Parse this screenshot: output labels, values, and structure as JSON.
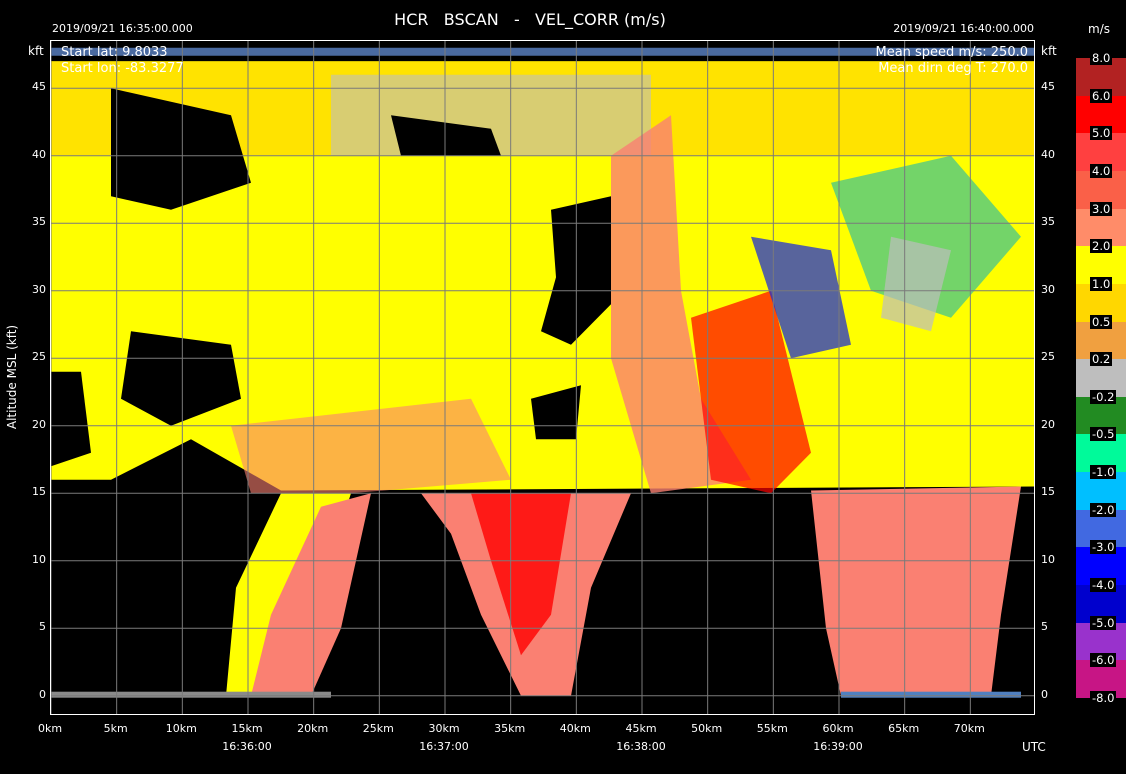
{
  "title": "HCR   BSCAN   -   VEL_CORR (m/s)",
  "start_time": "2019/09/21 16:35:00.000",
  "end_time": "2019/09/21 16:40:00.000",
  "info": {
    "start_lat": "Start lat: 9.8033",
    "start_lon": "Start lon: -83.3277",
    "mean_speed": "Mean speed m/s: 250.0",
    "mean_dirn": "Mean dirn deg T: 270.0"
  },
  "units_label": "m/s",
  "colors": {
    "background": "#000000",
    "yellow": "#ffff00",
    "gold": "#ffd700",
    "salmon": "#fa8072",
    "red": "#ff0000",
    "gray": "#bebebe",
    "green": "#228b22"
  },
  "chart_data": {
    "type": "heatmap",
    "field": "VEL_CORR",
    "units": "m/s",
    "ylabel": "Altitude MSL (kft)",
    "y_unit_label": "kft",
    "ylim": [
      -1.5,
      48.5
    ],
    "y_ticks": [
      0,
      5,
      10,
      15,
      20,
      25,
      30,
      35,
      40,
      45
    ],
    "y_tick_labels": [
      "0",
      "5",
      "10",
      "15",
      "20",
      "25",
      "30",
      "35",
      "40",
      "45"
    ],
    "xlim_km": [
      0,
      75
    ],
    "x_ticks_km": [
      0,
      5,
      10,
      15,
      20,
      25,
      30,
      35,
      40,
      45,
      50,
      55,
      60,
      65,
      70
    ],
    "x_tick_labels": [
      "0km",
      "5km",
      "10km",
      "15km",
      "20km",
      "25km",
      "30km",
      "35km",
      "40km",
      "45km",
      "50km",
      "55km",
      "60km",
      "65km",
      "70km"
    ],
    "time_ticks_km": [
      15,
      30,
      45,
      60
    ],
    "time_tick_labels": [
      "16:36:00",
      "16:37:00",
      "16:38:00",
      "16:39:00"
    ],
    "time_axis_label": "UTC",
    "grid": true,
    "colorbar": {
      "labels": [
        "8.0",
        "6.0",
        "5.0",
        "4.0",
        "3.0",
        "2.0",
        "1.0",
        "0.5",
        "0.2",
        "-0.2",
        "-0.5",
        "-1.0",
        "-2.0",
        "-3.0",
        "-4.0",
        "-5.0",
        "-6.0",
        "-8.0"
      ],
      "colors": [
        "#b22222",
        "#ff0000",
        "#ff4040",
        "#fa6048",
        "#ff8c69",
        "#ffff00",
        "#ffd700",
        "#f0a040",
        "#bebebe",
        "#228b22",
        "#00fa9a",
        "#00bfff",
        "#4169e1",
        "#0000ff",
        "#0000cd",
        "#9932cc",
        "#c71585",
        "#ff1493"
      ]
    },
    "regions": [
      {
        "name": "upper-cloud-layer",
        "color": "#ffff00",
        "x_km": [
          0,
          75
        ],
        "y_kft": [
          15,
          47
        ]
      },
      {
        "name": "lower-left-cloud",
        "color": "#ffff00",
        "x_km": [
          13,
          24
        ],
        "y_kft": [
          0,
          15
        ]
      },
      {
        "name": "precip-left",
        "color": "#fa8072",
        "x_km": [
          13,
          22
        ],
        "y_kft": [
          0,
          15
        ]
      },
      {
        "name": "precip-center",
        "color": "#fa8072",
        "x_km": [
          30,
          45
        ],
        "y_kft": [
          0,
          15
        ]
      },
      {
        "name": "precip-right",
        "color": "#fa8072",
        "x_km": [
          58,
          72
        ],
        "y_kft": [
          0,
          15
        ]
      }
    ]
  }
}
